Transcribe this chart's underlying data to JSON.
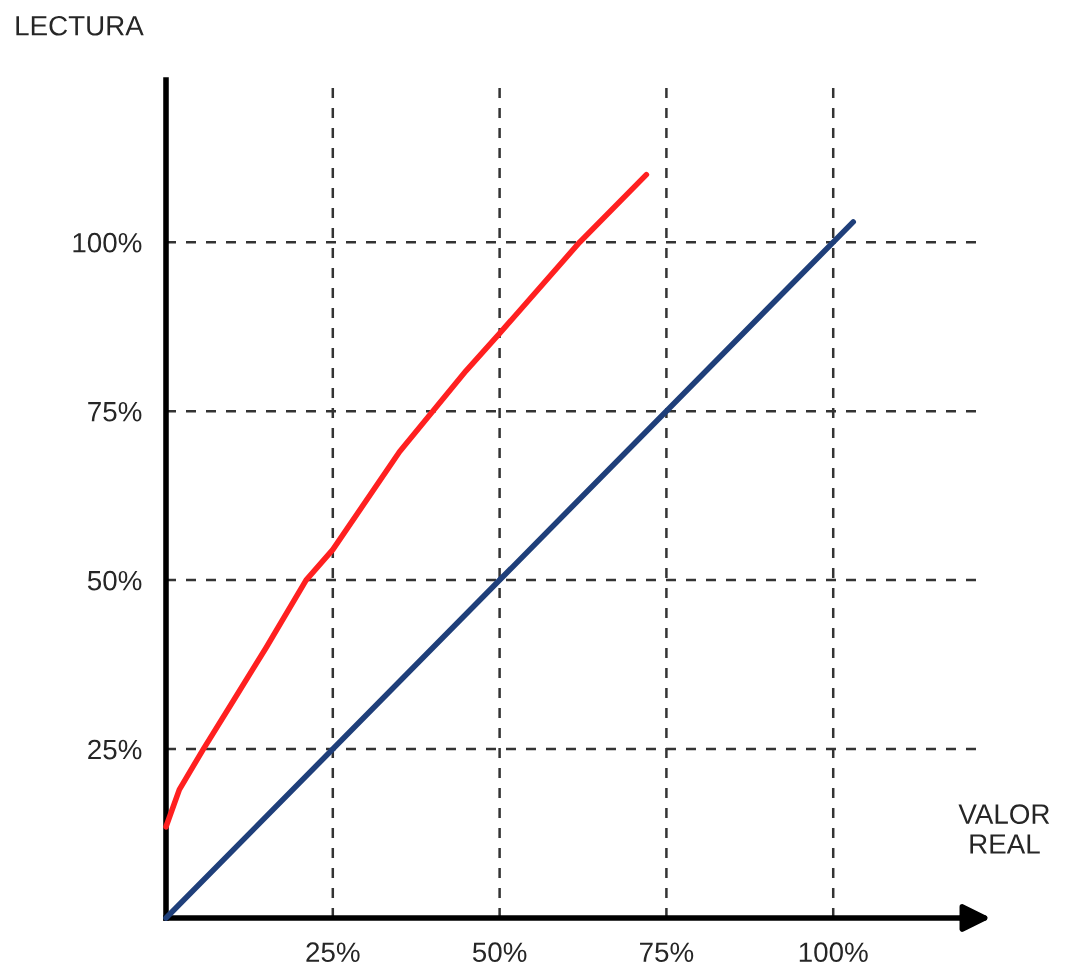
{
  "chart_data": {
    "type": "line",
    "xlabel": "VALOR\nREAL",
    "ylabel": "LECTURA",
    "series": [
      {
        "color": "#ff2020",
        "x": [
          0,
          2,
          5.6,
          10,
          15,
          21,
          25,
          35,
          45,
          50,
          62,
          72
        ],
        "values": [
          13.5,
          19,
          25,
          32,
          40,
          50,
          54.5,
          69,
          81,
          86.5,
          100,
          110
        ]
      },
      {
        "color": "#1f3f7a",
        "x": [
          0,
          103
        ],
        "values": [
          0,
          103
        ]
      }
    ],
    "xlim": [
      0,
      122
    ],
    "ylim": [
      0,
      124
    ],
    "xticks": [
      {
        "value": 25,
        "label": "25%"
      },
      {
        "value": 50,
        "label": "50%"
      },
      {
        "value": 75,
        "label": "75%"
      },
      {
        "value": 100,
        "label": "100%"
      }
    ],
    "yticks": [
      {
        "value": 25,
        "label": "25%"
      },
      {
        "value": 50,
        "label": "50%"
      },
      {
        "value": 75,
        "label": "75%"
      },
      {
        "value": 100,
        "label": "100%"
      }
    ],
    "grid": true,
    "marker": "none",
    "line_style": "solid"
  }
}
